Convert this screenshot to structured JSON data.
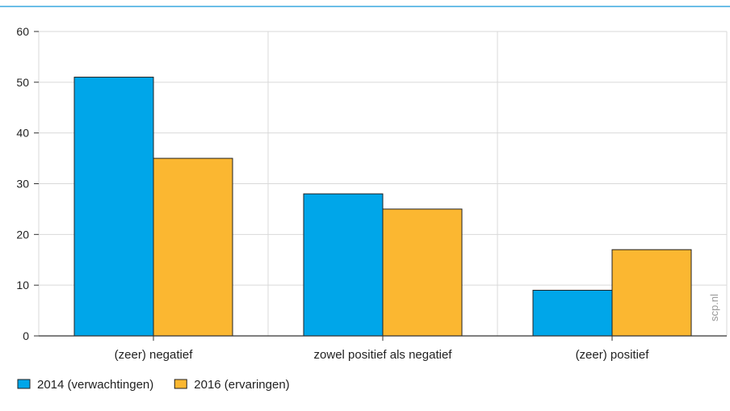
{
  "source_label": "scp.nl",
  "colors": {
    "top_rule": "#3aa8df",
    "grid": "#d9d9d9",
    "axis": "#333333",
    "bar_stroke": "#222222"
  },
  "chart_data": {
    "type": "bar",
    "categories": [
      "(zeer) negatief",
      "zowel positief als negatief",
      "(zeer) positief"
    ],
    "series": [
      {
        "name": "2014 (verwachtingen)",
        "values": [
          51,
          28,
          9
        ],
        "color": "#00a6e9"
      },
      {
        "name": "2016 (ervaringen)",
        "values": [
          35,
          25,
          17
        ],
        "color": "#fbb731"
      }
    ],
    "yticks": [
      0,
      10,
      20,
      30,
      40,
      50,
      60
    ],
    "ylim": [
      0,
      60
    ],
    "xlabel": "",
    "ylabel": "",
    "grid": true,
    "legend": "bottom-left"
  }
}
